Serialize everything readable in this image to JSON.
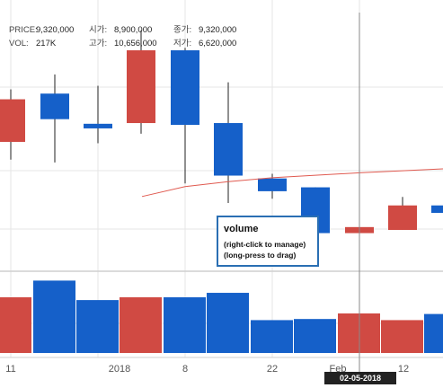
{
  "info": {
    "price_label": "PRICE:",
    "price": "9,320,000",
    "open_label": "시가:",
    "open": "8,900,000",
    "close_label": "종가:",
    "close": "9,320,000",
    "vol_label": "VOL:",
    "vol": "217K",
    "high_label": "고가:",
    "high": "10,656,000",
    "low_label": "저가:",
    "low": "6,620,000"
  },
  "tooltip": {
    "title": "volume",
    "line1": "(right-click to manage)",
    "line2": "(long-press to drag)"
  },
  "crosshair_date": "02-05-2018",
  "colors": {
    "up": "#d04a43",
    "down": "#1560c9",
    "ma": "#e05a50",
    "grid": "#e6e6e6",
    "crosshair": "#888888",
    "axis_text": "#555555"
  },
  "chart_data": {
    "type": "candlestick",
    "x_ticks": [
      "11",
      "2018",
      "8",
      "22",
      "Feb",
      "12"
    ],
    "candles": [
      {
        "dir": "up",
        "open": 7550000,
        "close": 8750000,
        "high": 9030000,
        "low": 7050000
      },
      {
        "dir": "down",
        "open": 8910000,
        "close": 8190000,
        "high": 9450000,
        "low": 6970000
      },
      {
        "dir": "down",
        "open": 8060000,
        "close": 7930000,
        "high": 9130000,
        "low": 7510000
      },
      {
        "dir": "up",
        "open": 8080000,
        "close": 10130000,
        "high": 10690000,
        "low": 7780000
      },
      {
        "dir": "down",
        "open": 10130000,
        "close": 8030000,
        "high": 10200000,
        "low": 6380000
      },
      {
        "dir": "down",
        "open": 8080000,
        "close": 6600000,
        "high": 9230000,
        "low": 5830000
      },
      {
        "dir": "down",
        "open": 6520000,
        "close": 6160000,
        "high": 6650000,
        "low": 5950000
      },
      {
        "dir": "down",
        "open": 6270000,
        "close": 4980000,
        "high": 6270000,
        "low": 4980000
      },
      {
        "dir": "up",
        "open": 4980000,
        "close": 5150000,
        "high": 5150000,
        "low": 4980000
      },
      {
        "dir": "up",
        "open": 5070000,
        "close": 5760000,
        "high": 6000000,
        "low": 5070000
      },
      {
        "dir": "down",
        "open": 5760000,
        "close": 5550000,
        "high": 5760000,
        "low": 5550000
      }
    ],
    "ma_line": [
      6010000,
      6290000,
      6430000,
      6540000,
      6610000,
      6680000,
      6790000
    ],
    "volume": [
      {
        "dir": "up",
        "value": 1.0
      },
      {
        "dir": "down",
        "value": 1.3
      },
      {
        "dir": "down",
        "value": 0.95
      },
      {
        "dir": "up",
        "value": 1.0
      },
      {
        "dir": "down",
        "value": 1.0
      },
      {
        "dir": "down",
        "value": 1.08
      },
      {
        "dir": "down",
        "value": 0.59
      },
      {
        "dir": "down",
        "value": 0.61
      },
      {
        "dir": "up",
        "value": 0.71
      },
      {
        "dir": "up",
        "value": 0.59
      },
      {
        "dir": "down",
        "value": 0.7
      }
    ]
  }
}
